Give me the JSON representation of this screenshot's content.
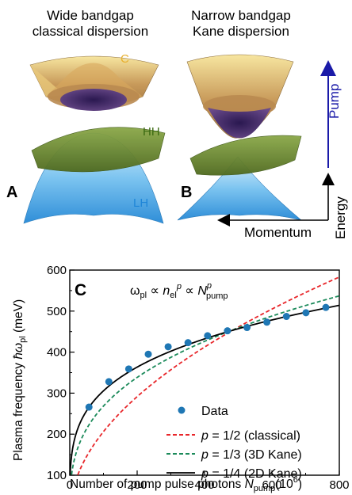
{
  "panel_a": {
    "title_line1": "Wide bandgap",
    "title_line2": "classical dispersion",
    "letter": "A",
    "label_c": "C",
    "label_hh": "HH",
    "label_lh": "LH"
  },
  "panel_b": {
    "title_line1": "Narrow bandgap",
    "title_line2": "Kane dispersion",
    "letter": "B",
    "pump_label": "Pump",
    "energy_label": "Energy",
    "momentum_label": "Momentum"
  },
  "colors": {
    "conduction_top": "#f2d98a",
    "conduction_bottom": "#3a2468",
    "heavy_hole": "#6b8a2c",
    "light_hole": "#4aa8e8",
    "pump_arrow": "#1a1aa8",
    "data_points": "#1f77b4",
    "classical": "#e8262a",
    "kane_3d": "#1b8a5a",
    "kane_2d": "#000000"
  },
  "chart_data": {
    "type": "scatter",
    "letter": "C",
    "xlabel": "Number of pump pulse photons N_pump(10^6)",
    "xlabel_main": "Number of pump pulse photons ",
    "xlabel_N": "N",
    "xlabel_sub": "pump",
    "xlabel_unit": "(10",
    "xlabel_exp": "6",
    "xlabel_close": ")",
    "ylabel": "Plasma frequency ħω_pl (meV)",
    "ylabel_main": "Plasma frequency ",
    "ylabel_sym": "ħω",
    "ylabel_sub": "pl",
    "ylabel_unit": " (meV)",
    "xlim": [
      0,
      800
    ],
    "ylim": [
      100,
      600
    ],
    "x_ticks": [
      0,
      200,
      400,
      600,
      800
    ],
    "y_ticks": [
      100,
      200,
      300,
      400,
      500,
      600
    ],
    "formula": "ω_pl ∝ n_el^p ∝ N_pump^p",
    "legend_position": "bottom-right",
    "series": [
      {
        "name": "Data",
        "kind": "points",
        "x": [
          57,
          116,
          175,
          233,
          292,
          351,
          409,
          468,
          526,
          585,
          643,
          701,
          760
        ],
        "y": [
          266,
          328,
          359,
          395,
          413,
          423,
          440,
          452,
          460,
          473,
          487,
          496,
          509
        ]
      },
      {
        "name": "p = 1/2 (classical)",
        "p_label": "p",
        "rest_label": " = 1/2 (classical)",
        "kind": "fit",
        "exponent": 0.5,
        "value_at_800": 583
      },
      {
        "name": "p = 1/3 (3D Kane)",
        "p_label": "p",
        "rest_label": " = 1/3 (3D Kane)",
        "kind": "fit",
        "exponent": 0.3333,
        "value_at_800": 537
      },
      {
        "name": "p = 1/4 (2D Kane)",
        "p_label": "p",
        "rest_label": " = 1/4 (2D Kane)",
        "kind": "fit",
        "exponent": 0.25,
        "value_at_800": 514
      }
    ]
  }
}
